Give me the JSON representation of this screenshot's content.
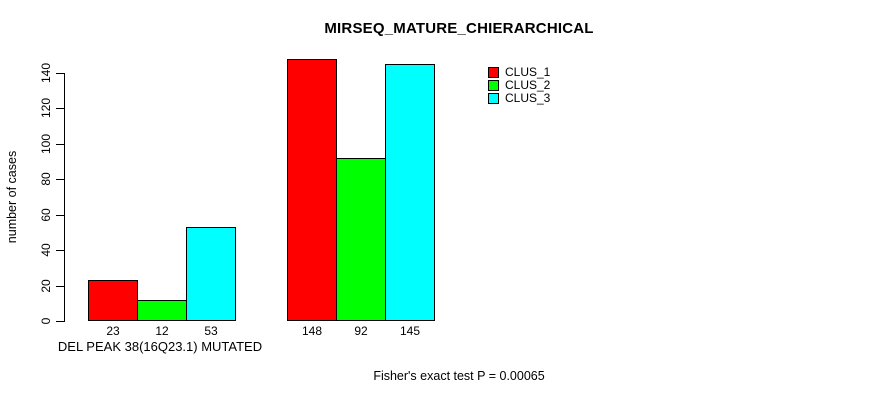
{
  "chart_data": {
    "type": "bar",
    "title": "MIRSEQ_MATURE_CHIERARCHICAL",
    "ylabel": "number of cases",
    "xlabel": "DEL PEAK 38(16Q23.1) MUTATED",
    "annotation": "Fisher's exact test P = 0.00065",
    "categories": [
      "",
      ""
    ],
    "series": [
      {
        "name": "CLUS_1",
        "color": "#ff0000",
        "values": [
          23,
          148
        ]
      },
      {
        "name": "CLUS_2",
        "color": "#00ff00",
        "values": [
          12,
          92
        ]
      },
      {
        "name": "CLUS_3",
        "color": "#00ffff",
        "values": [
          53,
          145
        ]
      }
    ],
    "bar_labels": [
      [
        "23",
        "12",
        "53"
      ],
      [
        "148",
        "92",
        "145"
      ]
    ],
    "yticks": [
      0,
      20,
      40,
      60,
      80,
      100,
      120,
      140
    ],
    "ylim": [
      0,
      148
    ],
    "grid": false,
    "legend": {
      "position": "top-right",
      "entries": [
        "CLUS_1",
        "CLUS_2",
        "CLUS_3"
      ]
    },
    "background": "#ffffff",
    "axis_color": "#000000",
    "bar_border_color": "#000000"
  }
}
